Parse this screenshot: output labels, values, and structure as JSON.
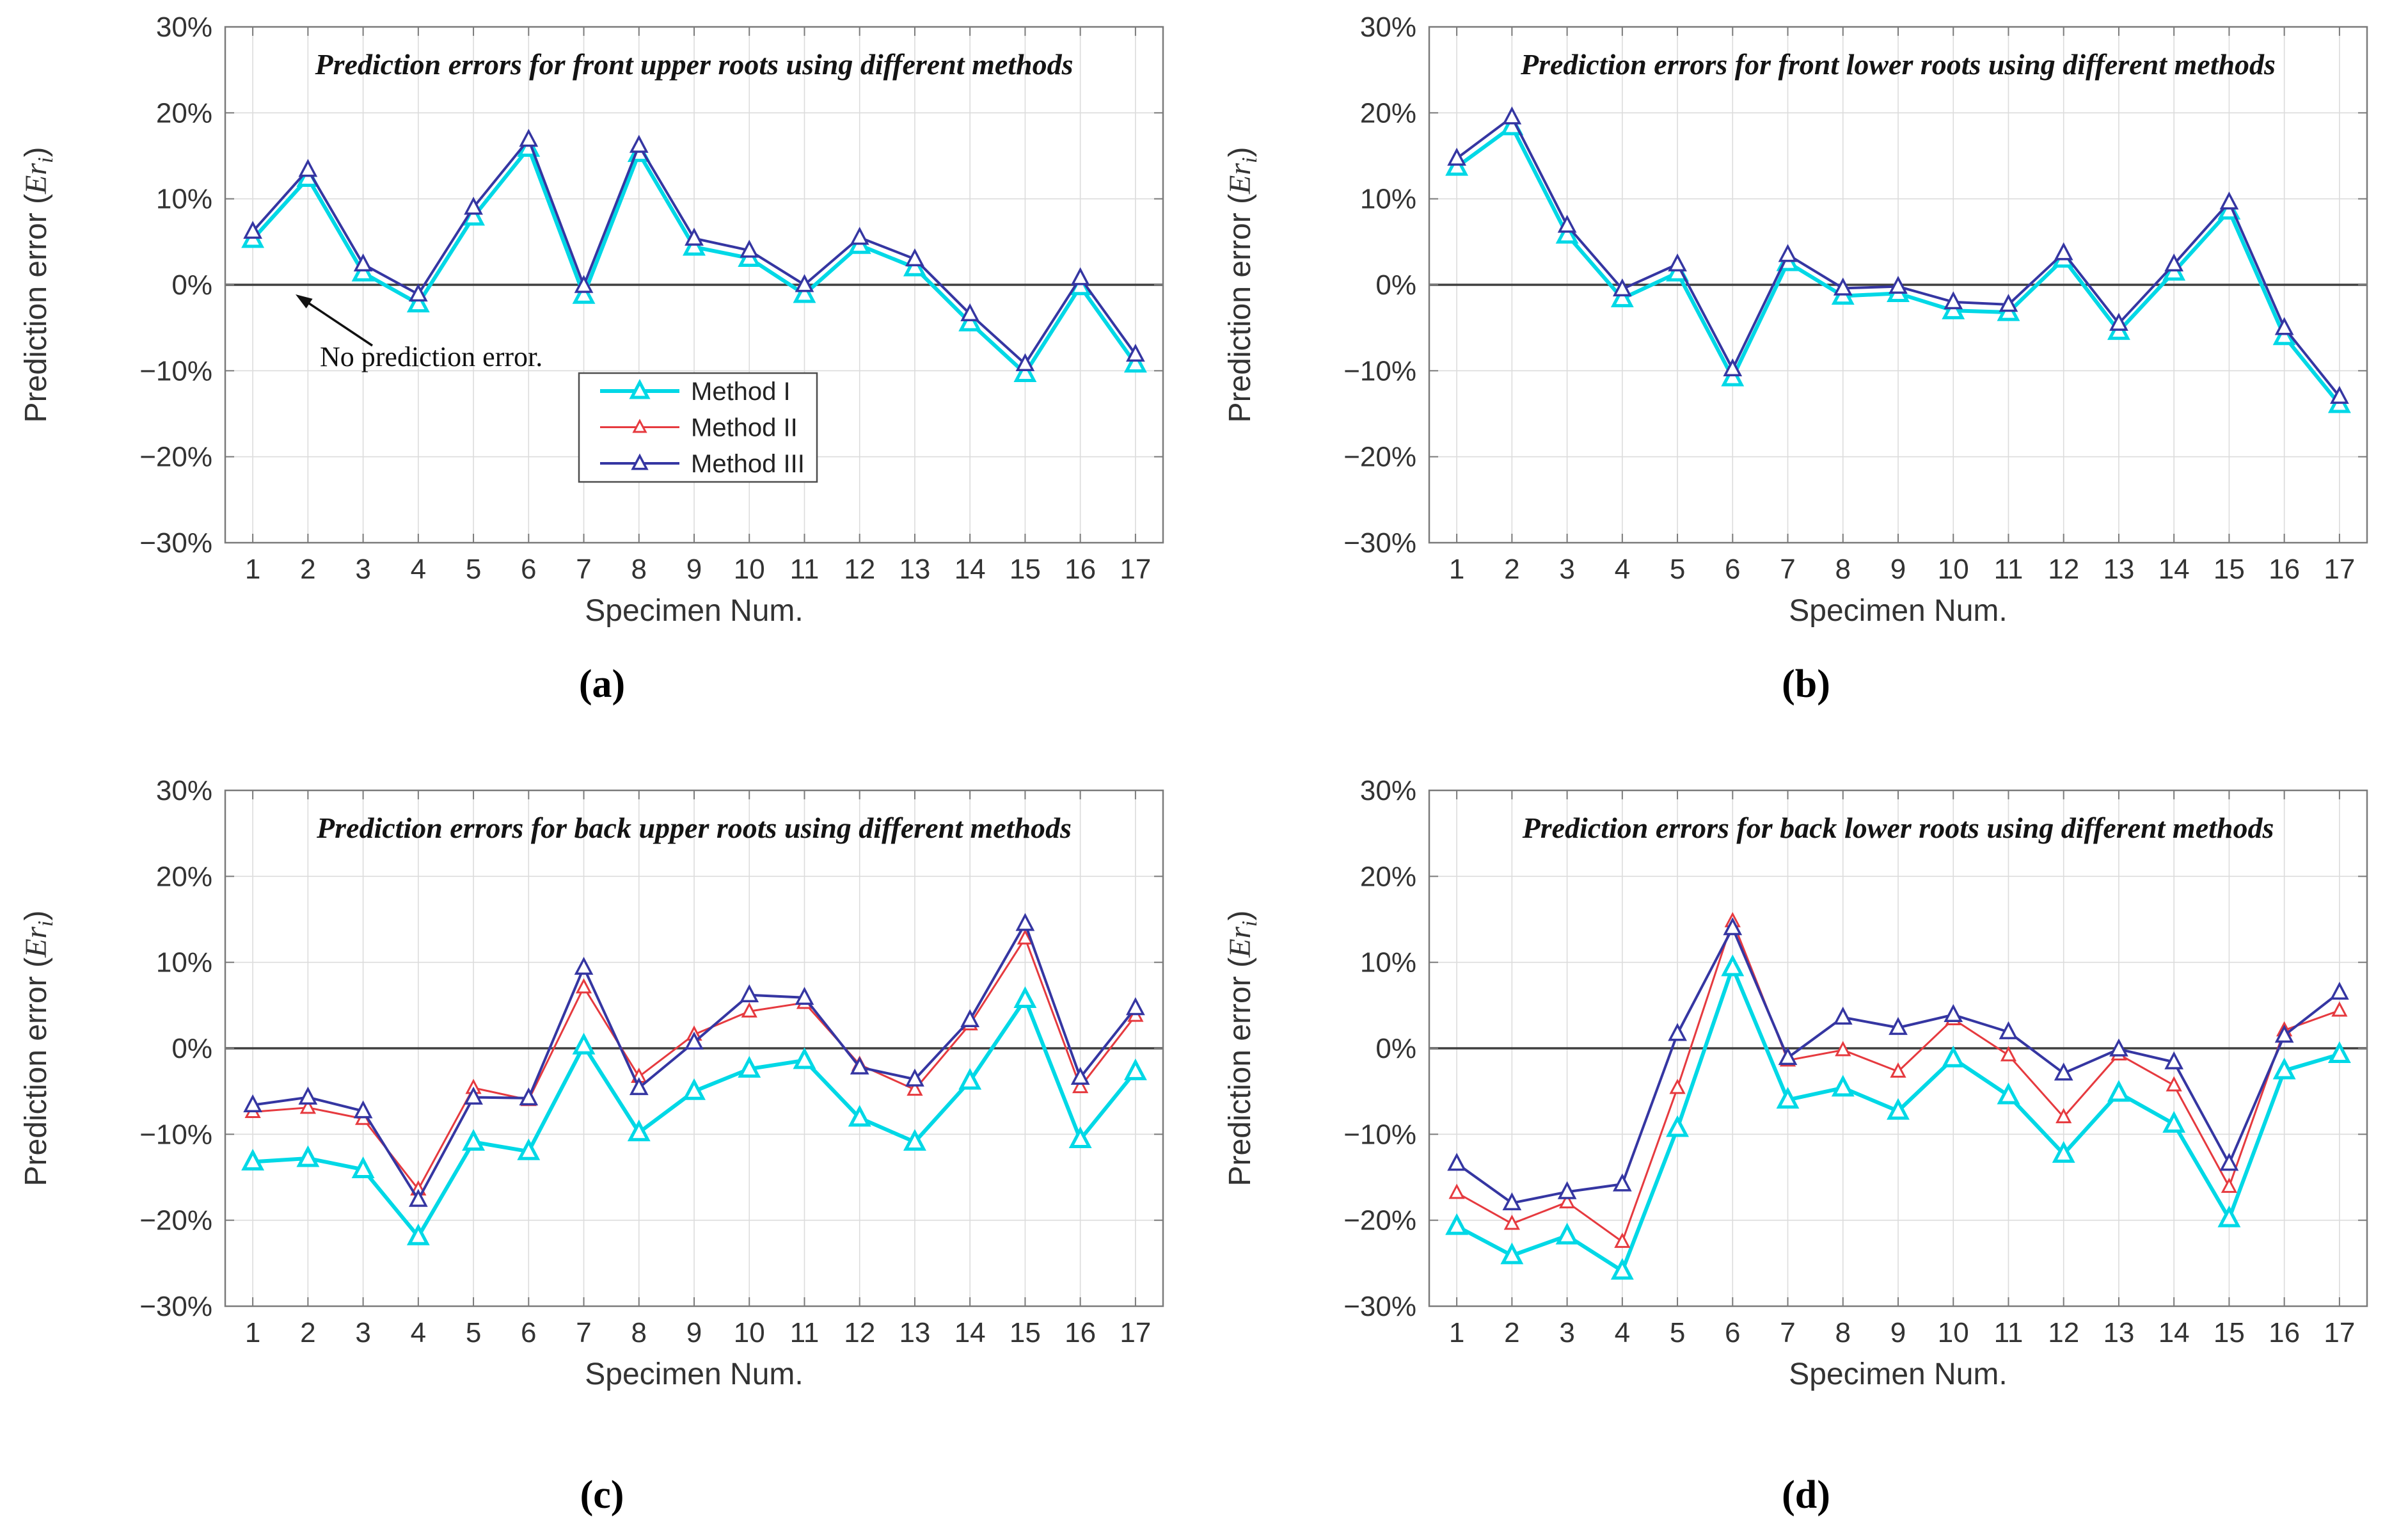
{
  "figure": {
    "xlabel": "Specimen Num.",
    "ylabel": {
      "prefix": "Prediction error (",
      "italic_var": "Er",
      "subscript": "i",
      "suffix": ")"
    },
    "yticks": [
      {
        "value": 30,
        "label": "30%"
      },
      {
        "value": 20,
        "label": "20%"
      },
      {
        "value": 10,
        "label": "10%"
      },
      {
        "value": 0,
        "label": "0%"
      },
      {
        "value": -10,
        "label": "−10%"
      },
      {
        "value": -20,
        "label": "−20%"
      },
      {
        "value": -30,
        "label": "−30%"
      }
    ],
    "colors": {
      "method1": "#00d8e6",
      "method2": "#e63a3f",
      "method3": "#3536a2",
      "zero_line": "#3f3f3f",
      "grid": "#dcdcdc",
      "spine": "#7a7a7a",
      "tick_text": "#333333",
      "title_text": "#141414",
      "annotation_text": "#111111"
    }
  },
  "legend": {
    "items": [
      "Method I",
      "Method II",
      "Method III"
    ]
  },
  "captions": [
    "(a)",
    "(b)",
    "(c)",
    "(d)"
  ],
  "chart_data": [
    {
      "id": "a",
      "type": "line",
      "title": "Prediction errors for front upper roots using different methods",
      "xlabel": "Specimen Num.",
      "x": [
        1,
        2,
        3,
        4,
        5,
        6,
        7,
        8,
        9,
        10,
        11,
        12,
        13,
        14,
        15,
        16,
        17
      ],
      "ylim": [
        -30,
        30
      ],
      "show_legend": true,
      "annotation": {
        "text": "No prediction error."
      },
      "series": [
        {
          "name": "Method I",
          "color": "#00d8e6",
          "values": [
            5.3,
            12.4,
            1.4,
            -2.2,
            7.9,
            15.9,
            -1.2,
            15.3,
            4.4,
            3.1,
            -1.1,
            4.6,
            2.0,
            -4.4,
            -10.3,
            -0.2,
            -9.2
          ]
        },
        {
          "name": "Method II",
          "color": "#e63a3f",
          "values": [
            6.2,
            13.4,
            2.4,
            -1.1,
            9.0,
            16.9,
            -0.1,
            16.2,
            5.4,
            4.0,
            0.0,
            5.5,
            3.0,
            -3.4,
            -9.2,
            0.8,
            -8.1
          ]
        },
        {
          "name": "Method III",
          "color": "#3536a2",
          "values": [
            6.2,
            13.4,
            2.4,
            -1.1,
            9.0,
            16.9,
            -0.1,
            16.2,
            5.4,
            4.0,
            0.0,
            5.5,
            3.0,
            -3.4,
            -9.2,
            0.8,
            -8.1
          ]
        }
      ]
    },
    {
      "id": "b",
      "type": "line",
      "title": "Prediction errors for front lower roots using different methods",
      "xlabel": "Specimen Num.",
      "x": [
        1,
        2,
        3,
        4,
        5,
        6,
        7,
        8,
        9,
        10,
        11,
        12,
        13,
        14,
        15,
        16,
        17
      ],
      "ylim": [
        -30,
        30
      ],
      "show_legend": false,
      "series": [
        {
          "name": "Method I",
          "color": "#00d8e6",
          "values": [
            13.7,
            18.4,
            5.8,
            -1.6,
            1.4,
            -10.8,
            2.6,
            -1.3,
            -1.0,
            -3.0,
            -3.2,
            3.0,
            -5.4,
            1.5,
            8.6,
            -6.0,
            -13.9
          ]
        },
        {
          "name": "Method II",
          "color": "#e63a3f",
          "values": [
            14.7,
            19.5,
            6.9,
            -0.5,
            2.4,
            -9.8,
            3.5,
            -0.4,
            -0.2,
            -2.0,
            -2.3,
            3.7,
            -4.5,
            2.4,
            9.6,
            -5.0,
            -13.0
          ]
        },
        {
          "name": "Method III",
          "color": "#3536a2",
          "values": [
            14.7,
            19.5,
            6.9,
            -0.5,
            2.4,
            -9.8,
            3.5,
            -0.4,
            -0.2,
            -2.0,
            -2.3,
            3.7,
            -4.5,
            2.4,
            9.6,
            -5.0,
            -13.0
          ]
        }
      ]
    },
    {
      "id": "c",
      "type": "line",
      "title": "Prediction errors for back upper roots using different methods",
      "xlabel": "Specimen Num.",
      "x": [
        1,
        2,
        3,
        4,
        5,
        6,
        7,
        8,
        9,
        10,
        11,
        12,
        13,
        14,
        15,
        16,
        17
      ],
      "ylim": [
        -30,
        30
      ],
      "show_legend": false,
      "series": [
        {
          "name": "Method I",
          "color": "#00d8e6",
          "values": [
            -13.2,
            -12.8,
            -14.1,
            -21.9,
            -10.9,
            -12.0,
            0.3,
            -9.8,
            -5.0,
            -2.4,
            -1.4,
            -8.1,
            -10.9,
            -3.8,
            5.7,
            -10.6,
            -2.7
          ]
        },
        {
          "name": "Method II",
          "color": "#e63a3f",
          "values": [
            -7.4,
            -6.9,
            -8.2,
            -16.4,
            -4.6,
            -6.0,
            7.1,
            -3.3,
            1.6,
            4.3,
            5.3,
            -1.9,
            -4.8,
            2.8,
            12.8,
            -4.5,
            3.8
          ]
        },
        {
          "name": "Method III",
          "color": "#3536a2",
          "values": [
            -6.6,
            -5.7,
            -7.3,
            -17.6,
            -5.7,
            -5.8,
            9.4,
            -4.6,
            0.7,
            6.2,
            5.9,
            -2.2,
            -3.6,
            3.3,
            14.5,
            -3.4,
            4.7
          ]
        }
      ]
    },
    {
      "id": "d",
      "type": "line",
      "title": "Prediction errors for back lower roots using different methods",
      "xlabel": "Specimen Num.",
      "x": [
        1,
        2,
        3,
        4,
        5,
        6,
        7,
        8,
        9,
        10,
        11,
        12,
        13,
        14,
        15,
        16,
        17
      ],
      "ylim": [
        -30,
        30
      ],
      "show_legend": false,
      "series": [
        {
          "name": "Method I",
          "color": "#00d8e6",
          "values": [
            -20.7,
            -24.1,
            -21.8,
            -25.9,
            -9.3,
            9.4,
            -6.0,
            -4.6,
            -7.3,
            -1.2,
            -5.5,
            -12.3,
            -5.2,
            -8.8,
            -19.8,
            -2.6,
            -0.7
          ]
        },
        {
          "name": "Method II",
          "color": "#e63a3f",
          "values": [
            -16.8,
            -20.4,
            -17.9,
            -22.5,
            -4.6,
            14.8,
            -1.4,
            -0.2,
            -2.7,
            3.4,
            -0.8,
            -8.0,
            -0.7,
            -4.3,
            -16.1,
            2.1,
            4.4
          ]
        },
        {
          "name": "Method III",
          "color": "#3536a2",
          "values": [
            -13.4,
            -18.0,
            -16.7,
            -15.8,
            1.7,
            14.0,
            -1.1,
            3.6,
            2.4,
            3.9,
            1.9,
            -2.9,
            -0.1,
            -1.6,
            -13.4,
            1.5,
            6.5
          ]
        }
      ]
    }
  ]
}
